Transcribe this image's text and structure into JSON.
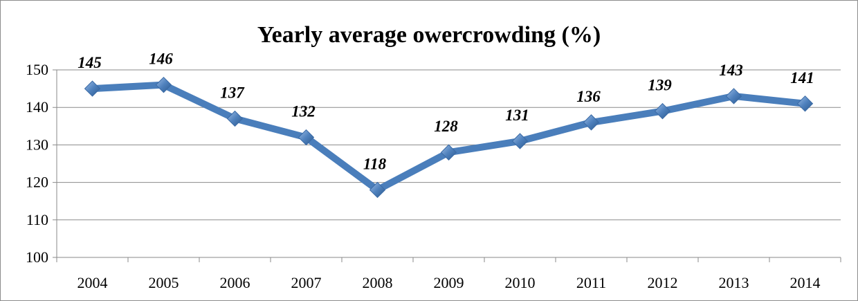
{
  "chart_data": {
    "type": "line",
    "title": "Yearly average owercrowding (%)",
    "xlabel": "",
    "ylabel": "",
    "categories": [
      "2004",
      "2005",
      "2006",
      "2007",
      "2008",
      "2009",
      "2010",
      "2011",
      "2012",
      "2013",
      "2014"
    ],
    "series": [
      {
        "values": [
          145,
          146,
          137,
          132,
          118,
          128,
          131,
          136,
          139,
          143,
          141
        ],
        "color": "#4a7ebb",
        "marker": "diamond"
      }
    ],
    "ylim": [
      100,
      150
    ],
    "yticks": [
      100,
      110,
      120,
      130,
      140,
      150
    ],
    "grid": true,
    "legend": "none",
    "data_labels": true
  }
}
